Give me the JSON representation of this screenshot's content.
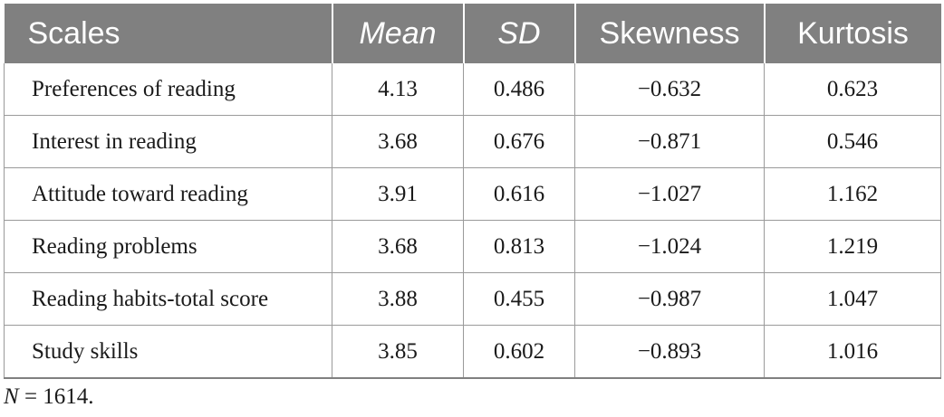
{
  "table": {
    "headers": [
      "Scales",
      "Mean",
      "SD",
      "Skewness",
      "Kurtosis"
    ],
    "rows": [
      [
        "Preferences of reading",
        "4.13",
        "0.486",
        "−0.632",
        "0.623"
      ],
      [
        "Interest in reading",
        "3.68",
        "0.676",
        "−0.871",
        "0.546"
      ],
      [
        "Attitude toward reading",
        "3.91",
        "0.616",
        "−1.027",
        "1.162"
      ],
      [
        "Reading problems",
        "3.68",
        "0.813",
        "−1.024",
        "1.219"
      ],
      [
        "Reading habits-total score",
        "3.88",
        "0.455",
        "−0.987",
        "1.047"
      ],
      [
        "Study skills",
        "3.85",
        "0.602",
        "−0.893",
        "1.016"
      ]
    ]
  },
  "note": {
    "symbol": "N",
    "text": " = 1614."
  },
  "colors": {
    "header_bg": "#808080",
    "header_text": "#ffffff",
    "grid": "#9a9a9a"
  }
}
